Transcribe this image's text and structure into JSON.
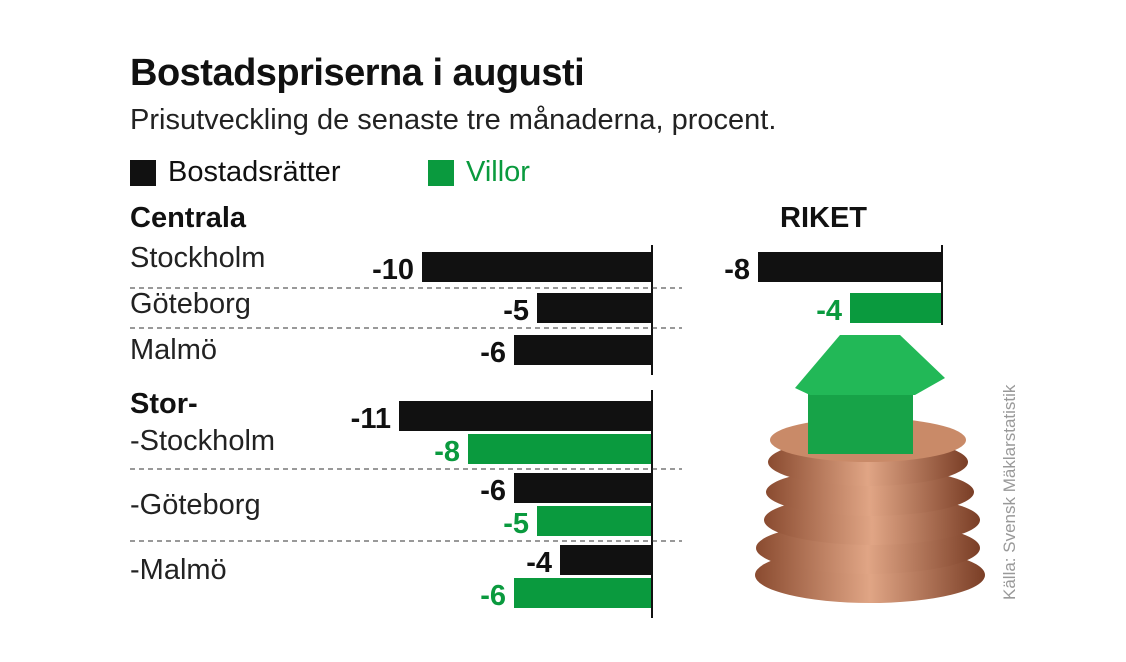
{
  "chart_data": {
    "type": "bar",
    "orientation": "horizontal",
    "title": "Bostadspriserna i augusti",
    "subtitle": "Prisutveckling de senaste tre månaderna, procent.",
    "legend": [
      {
        "name": "Bostadsrätter",
        "color": "#111111"
      },
      {
        "name": "Villor",
        "color": "#0a9a3e"
      }
    ],
    "legend_placement": "top-left",
    "groups": [
      {
        "label": "Centrala",
        "rows": [
          {
            "label": "Stockholm",
            "Bostadsrätter": -10
          },
          {
            "label": "Göteborg",
            "Bostadsrätter": -5
          },
          {
            "label": "Malmö",
            "Bostadsrätter": -6
          }
        ]
      },
      {
        "label": "Stor-",
        "rows": [
          {
            "label": "-Stockholm",
            "Bostadsrätter": -11,
            "Villor": -8
          },
          {
            "label": "-Göteborg",
            "Bostadsrätter": -6,
            "Villor": -5
          },
          {
            "label": "-Malmö",
            "Bostadsrätter": -4,
            "Villor": -6
          }
        ]
      },
      {
        "label": "RIKET",
        "rows": [
          {
            "label": "",
            "Bostadsrätter": -8,
            "Villor": -4
          }
        ]
      }
    ],
    "source": "Källa: Svensk Mäklarstatistik"
  }
}
